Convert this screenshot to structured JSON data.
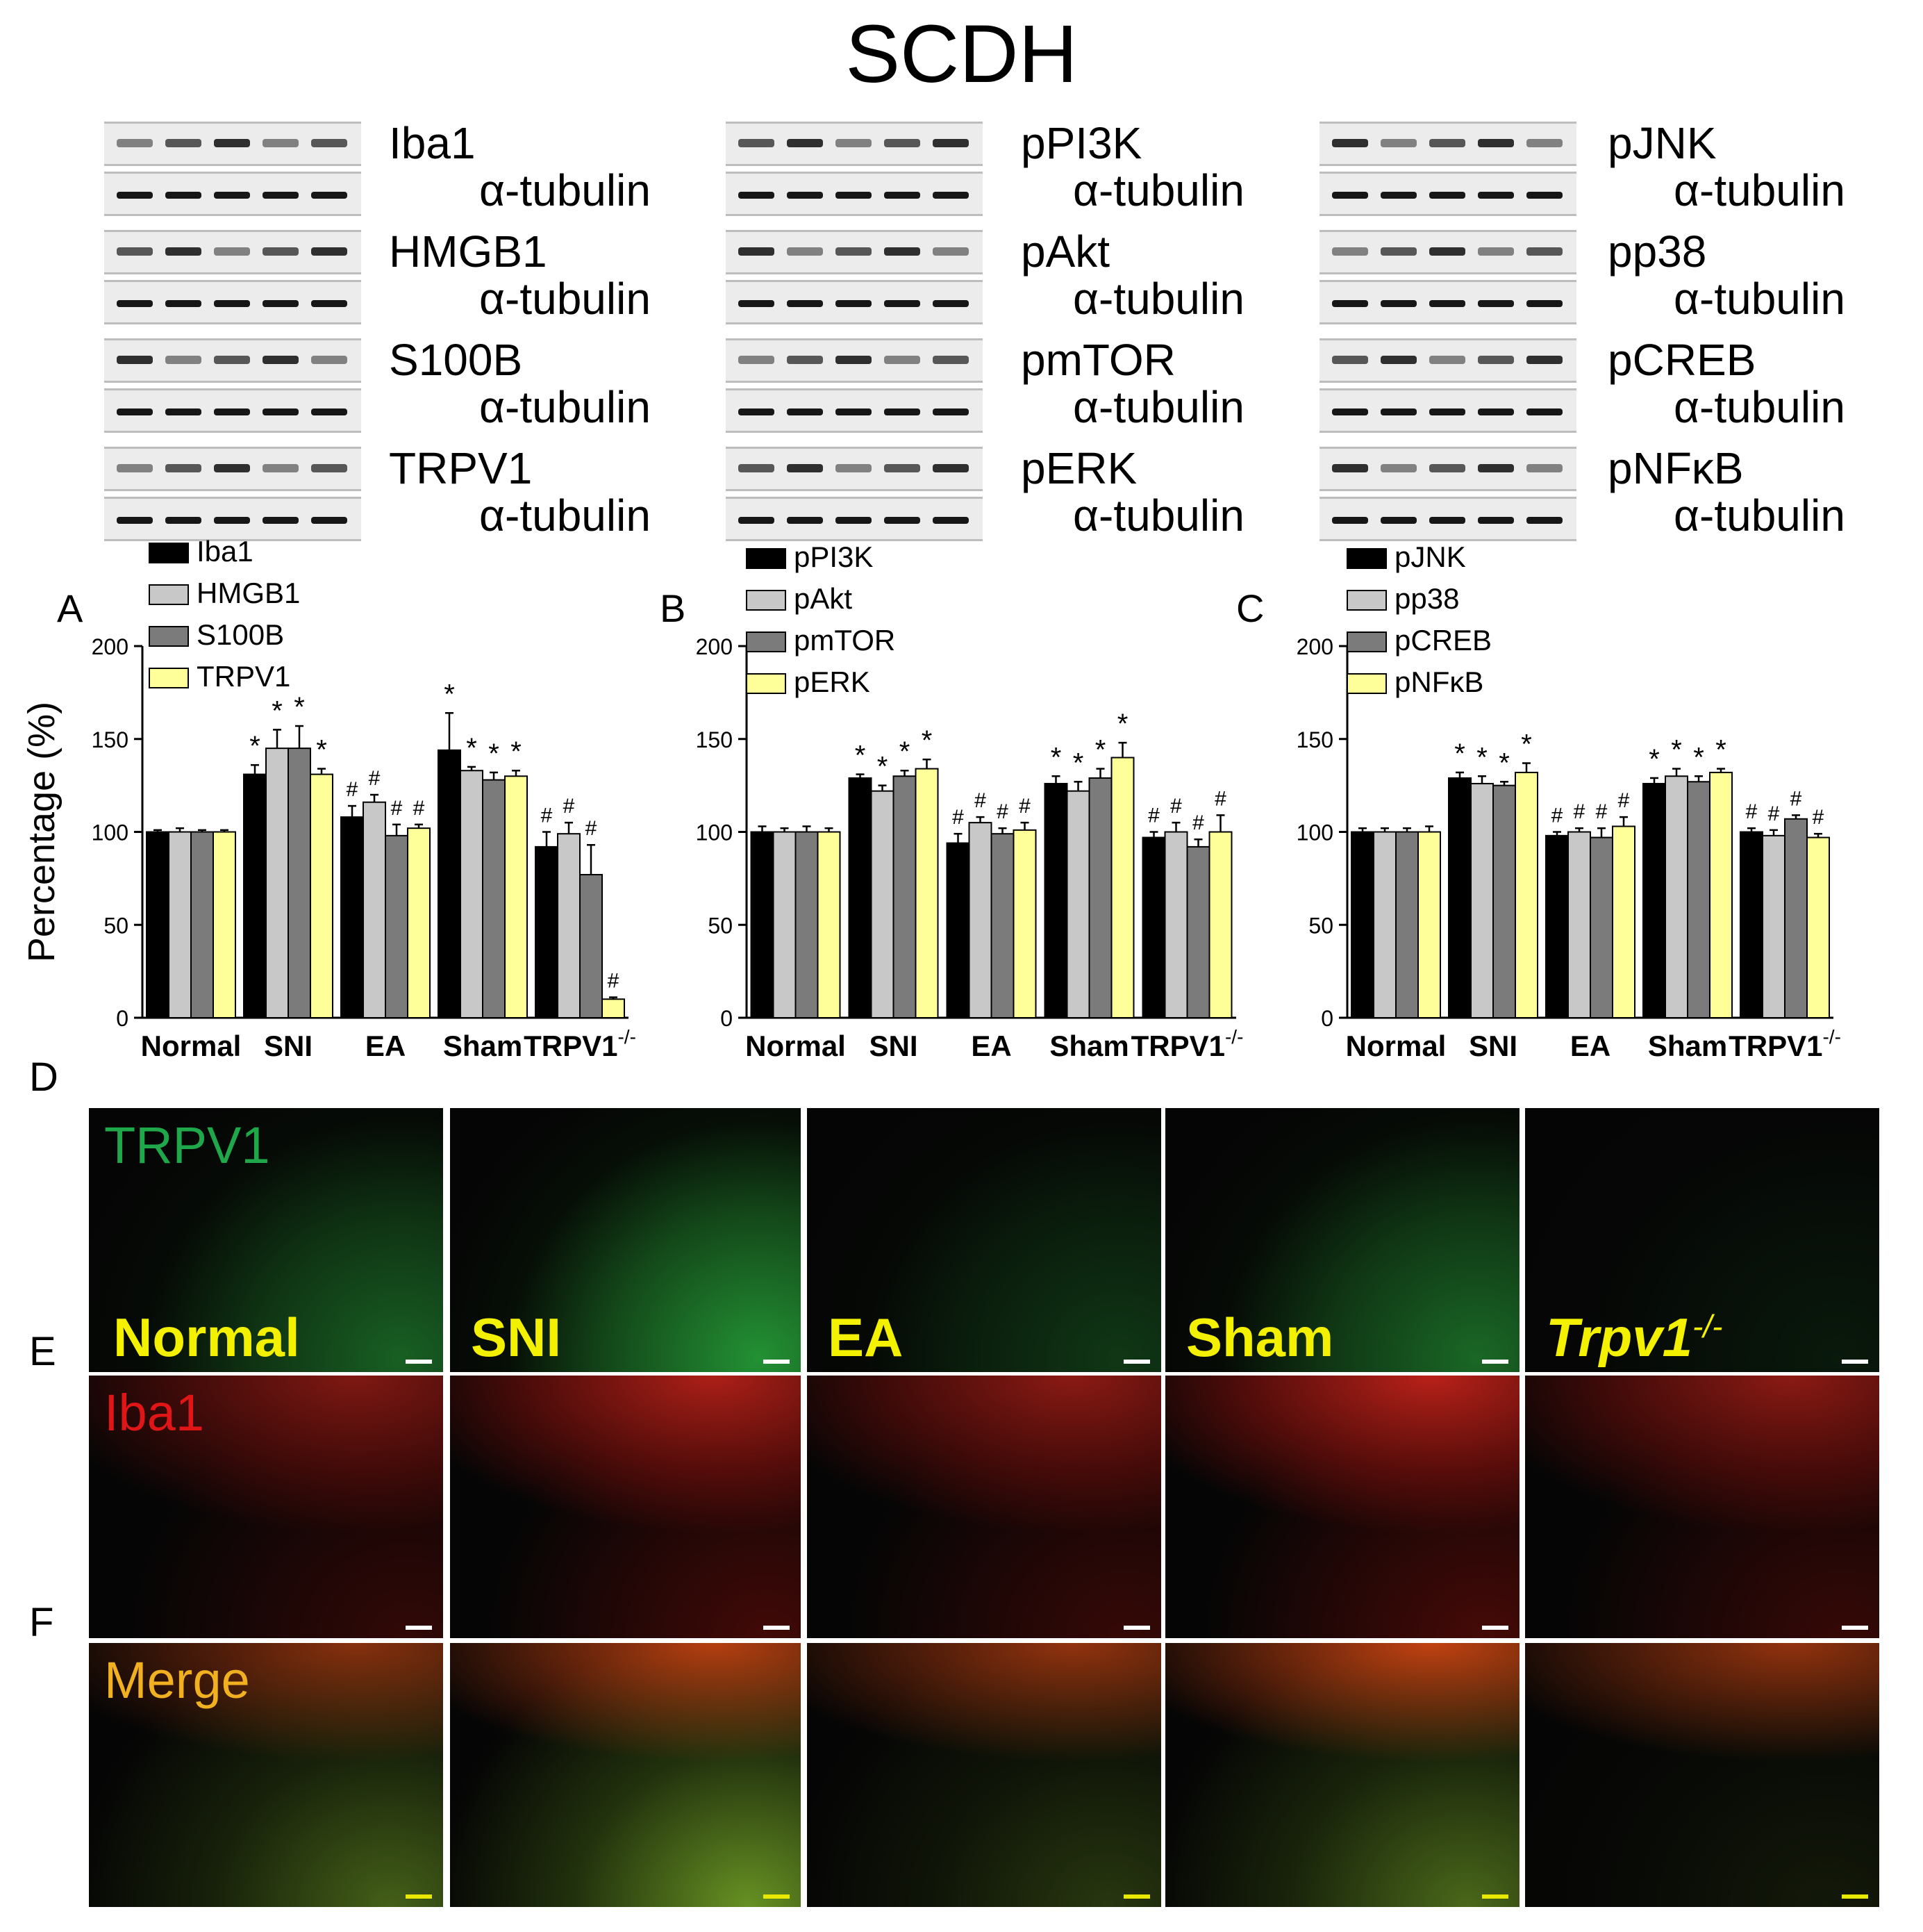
{
  "figure": {
    "title": "SCDH",
    "groups": [
      "Normal",
      "SNI",
      "EA",
      "Sham",
      "TRPV1-/-"
    ]
  },
  "colors": {
    "bar_black": "#000000",
    "bar_lightgray": "#c8c8c8",
    "bar_darkgray": "#7b7b7b",
    "bar_yellow": "#ffff99",
    "green_channel": "#1ea84a",
    "red_channel": "#e01515",
    "merge_label": "#f0b020",
    "group_label": "#f3f000"
  },
  "blots": [
    {
      "panel": "left",
      "rows": [
        {
          "target": "Iba1",
          "control": "α-tubulin"
        },
        {
          "target": "HMGB1",
          "control": "α-tubulin"
        },
        {
          "target": "S100B",
          "control": "α-tubulin"
        },
        {
          "target": "TRPV1",
          "control": "α-tubulin"
        }
      ]
    },
    {
      "panel": "middle",
      "rows": [
        {
          "target": "pPI3K",
          "control": "α-tubulin"
        },
        {
          "target": "pAkt",
          "control": "α-tubulin"
        },
        {
          "target": "pmTOR",
          "control": "α-tubulin"
        },
        {
          "target": "pERK",
          "control": "α-tubulin"
        }
      ]
    },
    {
      "panel": "right",
      "rows": [
        {
          "target": "pJNK",
          "control": "α-tubulin"
        },
        {
          "target": "pp38",
          "control": "α-tubulin"
        },
        {
          "target": "pCREB",
          "control": "α-tubulin"
        },
        {
          "target": "pNFκB",
          "control": "α-tubulin"
        }
      ]
    }
  ],
  "chart_data": [
    {
      "type": "bar",
      "panel": "A",
      "ylabel": "Percentage (%)",
      "ylim": [
        0,
        200
      ],
      "yticks": [
        0,
        50,
        100,
        150,
        200
      ],
      "categories": [
        "Normal",
        "SNI",
        "EA",
        "Sham",
        "TRPV1"
      ],
      "category_superscript": "-/-",
      "legend_position": "top-left",
      "series": [
        {
          "name": "Iba1",
          "color": "#000000",
          "values": [
            100,
            131,
            108,
            144,
            92
          ],
          "errors": [
            1,
            5,
            6,
            20,
            8
          ],
          "marks": [
            "",
            "*",
            "#",
            "*",
            "#"
          ]
        },
        {
          "name": "HMGB1",
          "color": "#c8c8c8",
          "values": [
            100,
            145,
            116,
            133,
            99
          ],
          "errors": [
            2,
            10,
            4,
            2,
            6
          ],
          "marks": [
            "",
            "*",
            "#",
            "*",
            "#"
          ]
        },
        {
          "name": "S100B",
          "color": "#7b7b7b",
          "values": [
            100,
            145,
            98,
            128,
            77
          ],
          "errors": [
            1,
            12,
            6,
            4,
            16
          ],
          "marks": [
            "",
            "*",
            "#",
            "*",
            "#"
          ]
        },
        {
          "name": "TRPV1",
          "color": "#ffff99",
          "values": [
            100,
            131,
            102,
            130,
            10
          ],
          "errors": [
            1,
            3,
            2,
            3,
            1
          ],
          "marks": [
            "",
            "*",
            "#",
            "*",
            "#"
          ]
        }
      ]
    },
    {
      "type": "bar",
      "panel": "B",
      "ylim": [
        0,
        200
      ],
      "yticks": [
        0,
        50,
        100,
        150,
        200
      ],
      "categories": [
        "Normal",
        "SNI",
        "EA",
        "Sham",
        "TRPV1"
      ],
      "category_superscript": "-/-",
      "legend_position": "top-left",
      "series": [
        {
          "name": "pPI3K",
          "color": "#000000",
          "values": [
            100,
            129,
            94,
            126,
            97
          ],
          "errors": [
            3,
            2,
            5,
            4,
            3
          ],
          "marks": [
            "",
            "*",
            "#",
            "*",
            "#"
          ]
        },
        {
          "name": "pAkt",
          "color": "#c8c8c8",
          "values": [
            100,
            122,
            105,
            122,
            100
          ],
          "errors": [
            2,
            3,
            3,
            5,
            5
          ],
          "marks": [
            "",
            "*",
            "#",
            "*",
            "#"
          ]
        },
        {
          "name": "pmTOR",
          "color": "#7b7b7b",
          "values": [
            100,
            130,
            99,
            129,
            92
          ],
          "errors": [
            3,
            3,
            3,
            5,
            4
          ],
          "marks": [
            "",
            "*",
            "#",
            "*",
            "#"
          ]
        },
        {
          "name": "pERK",
          "color": "#ffff99",
          "values": [
            100,
            134,
            101,
            140,
            100
          ],
          "errors": [
            2,
            5,
            4,
            8,
            9
          ],
          "marks": [
            "",
            "*",
            "#",
            "*",
            "#"
          ]
        }
      ]
    },
    {
      "type": "bar",
      "panel": "C",
      "ylim": [
        0,
        200
      ],
      "yticks": [
        0,
        50,
        100,
        150,
        200
      ],
      "categories": [
        "Normal",
        "SNI",
        "EA",
        "Sham",
        "TRPV1"
      ],
      "category_superscript": "-/-",
      "legend_position": "top-left",
      "series": [
        {
          "name": "pJNK",
          "color": "#000000",
          "values": [
            100,
            129,
            98,
            126,
            100
          ],
          "errors": [
            2,
            3,
            2,
            3,
            2
          ],
          "marks": [
            "",
            "*",
            "#",
            "*",
            "#"
          ]
        },
        {
          "name": "pp38",
          "color": "#c8c8c8",
          "values": [
            100,
            126,
            100,
            130,
            98
          ],
          "errors": [
            2,
            4,
            2,
            4,
            3
          ],
          "marks": [
            "",
            "*",
            "#",
            "*",
            "#"
          ]
        },
        {
          "name": "pCREB",
          "color": "#7b7b7b",
          "values": [
            100,
            125,
            97,
            127,
            107
          ],
          "errors": [
            2,
            2,
            5,
            3,
            2
          ],
          "marks": [
            "",
            "*",
            "#",
            "*",
            "#"
          ]
        },
        {
          "name": "pNFκB",
          "color": "#ffff99",
          "values": [
            100,
            132,
            103,
            132,
            97
          ],
          "errors": [
            3,
            5,
            5,
            2,
            2
          ],
          "marks": [
            "",
            "*",
            "#",
            "*",
            "#"
          ]
        }
      ]
    }
  ],
  "micrographs": {
    "panel_letters": [
      "D",
      "E",
      "F"
    ],
    "channels": [
      "TRPV1",
      "Iba1",
      "Merge"
    ],
    "group_labels": [
      "Normal",
      "SNI",
      "EA",
      "Sham",
      "Trpv1"
    ],
    "knockout_superscript": "-/-",
    "green_intensity": [
      0.55,
      0.85,
      0.3,
      0.6,
      0.12
    ],
    "red_intensity": [
      0.55,
      0.75,
      0.6,
      0.8,
      0.6
    ]
  }
}
